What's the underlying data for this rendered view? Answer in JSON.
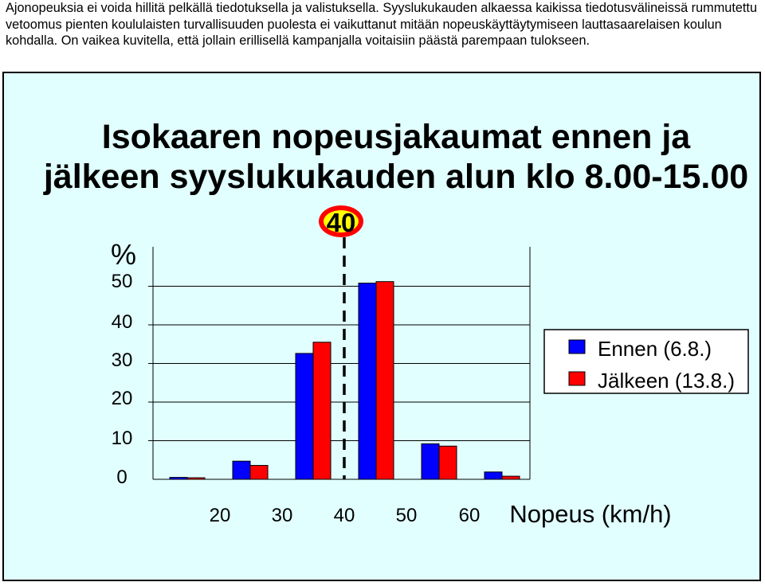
{
  "intro_text": "Ajonopeuksia ei voida hillitä pelkällä tiedotuksella ja valistuksella. Syyslukukauden alkaessa kaikissa tiedotusvälineissä rummutettu vetoomus pienten koululaisten turvallisuuden puolesta ei vaikuttanut mitään nopeuskäyttäytymiseen lauttasaarelaisen koulun kohdalla. On vaikea kuvitella, että jollain erillisellä kampanjalla voitaisiin päästä parempaan tulokseen.",
  "colors": {
    "background": "#e1ffff",
    "ennen": "#0000ff",
    "jalkeen": "#ff0000",
    "speed_sign_ring": "#ff0000",
    "speed_sign_fill": "#ffff00"
  },
  "chart_data": {
    "type": "bar",
    "title_line1": "Isokaaren nopeusjakaumat ennen ja",
    "title_line2": "jälkeen syyslukukauden alun klo 8.00-15.00",
    "ylabel": "%",
    "xlabel": "Nopeus (km/h)",
    "ylim": [
      0,
      50
    ],
    "yticks": [
      "50",
      "40",
      "30",
      "20",
      "10",
      "0"
    ],
    "xtick_labels": [
      "20",
      "30",
      "40",
      "50",
      "60"
    ],
    "categories": [
      "15",
      "25",
      "35",
      "45",
      "55",
      "65"
    ],
    "series": [
      {
        "name": "Ennen (6.8.)",
        "values": [
          0.5,
          4.7,
          32.6,
          50.8,
          9.2,
          1.9
        ]
      },
      {
        "name": "Jälkeen (13.8.)",
        "values": [
          0.4,
          3.6,
          35.5,
          51.2,
          8.6,
          0.8
        ]
      }
    ],
    "speed_limit": "40",
    "grid": "horizontal",
    "legend_position": "right"
  }
}
